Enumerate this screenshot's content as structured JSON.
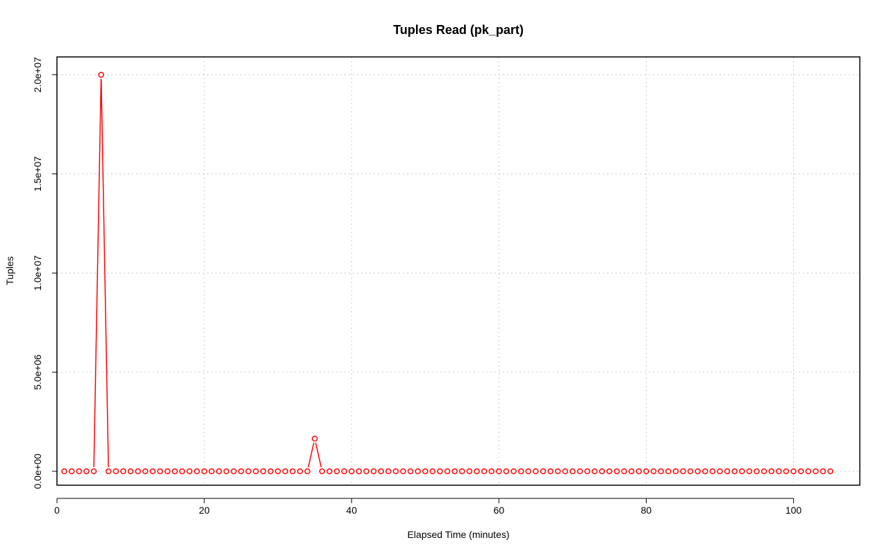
{
  "chart_data": {
    "type": "line",
    "title": "Tuples Read (pk_part)",
    "xlabel": "Elapsed Time (minutes)",
    "ylabel": "Tuples",
    "xlim": [
      0,
      109
    ],
    "ylim": [
      -700000,
      20900000
    ],
    "x_ticks": [
      0,
      20,
      40,
      60,
      80,
      100
    ],
    "x_tick_labels": [
      "0",
      "20",
      "40",
      "60",
      "80",
      "100"
    ],
    "y_ticks": [
      0,
      5000000,
      10000000,
      15000000,
      20000000
    ],
    "y_tick_labels": [
      "0.0e+00",
      "5.0e+06",
      "1.0e+07",
      "1.5e+07",
      "2.0e+07"
    ],
    "grid": true,
    "marker": "open-circle",
    "series_color": "#ff0000",
    "series": [
      {
        "x": [
          1,
          2,
          3,
          4,
          5,
          6,
          7,
          8,
          9,
          10,
          11,
          12,
          13,
          14,
          15,
          16,
          17,
          18,
          19,
          20,
          21,
          22,
          23,
          24,
          25,
          26,
          27,
          28,
          29,
          30,
          31,
          32,
          33,
          34,
          35,
          36,
          37,
          38,
          39,
          40,
          41,
          42,
          43,
          44,
          45,
          46,
          47,
          48,
          49,
          50,
          51,
          52,
          53,
          54,
          55,
          56,
          57,
          58,
          59,
          60,
          61,
          62,
          63,
          64,
          65,
          66,
          67,
          68,
          69,
          70,
          71,
          72,
          73,
          74,
          75,
          76,
          77,
          78,
          79,
          80,
          81,
          82,
          83,
          84,
          85,
          86,
          87,
          88,
          89,
          90,
          91,
          92,
          93,
          94,
          95,
          96,
          97,
          98,
          99,
          100,
          101,
          102,
          103,
          104,
          105
        ],
        "values": [
          0,
          0,
          0,
          0,
          0,
          20000000,
          0,
          0,
          0,
          0,
          0,
          0,
          0,
          0,
          0,
          0,
          0,
          0,
          0,
          0,
          0,
          0,
          0,
          0,
          0,
          0,
          0,
          0,
          0,
          0,
          0,
          0,
          0,
          0,
          1650000,
          0,
          0,
          0,
          0,
          0,
          0,
          0,
          0,
          0,
          0,
          0,
          0,
          0,
          0,
          0,
          0,
          0,
          0,
          0,
          0,
          0,
          0,
          0,
          0,
          0,
          0,
          0,
          0,
          0,
          0,
          0,
          0,
          0,
          0,
          0,
          0,
          0,
          0,
          0,
          0,
          0,
          0,
          0,
          0,
          0,
          0,
          0,
          0,
          0,
          0,
          0,
          0,
          0,
          0,
          0,
          0,
          0,
          0,
          0,
          0,
          0,
          0,
          0,
          0,
          0,
          0,
          0,
          0,
          0,
          0
        ]
      }
    ]
  }
}
